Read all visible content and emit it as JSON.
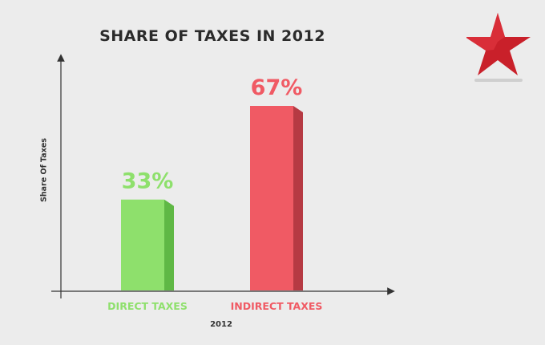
{
  "chart_data": {
    "type": "bar",
    "title": "SHARE OF TAXES IN 2012",
    "xlabel": "2012",
    "ylabel": "Share Of Taxes",
    "categories": [
      "DIRECT TAXES",
      "INDIRECT TAXES"
    ],
    "values": [
      33,
      67
    ],
    "data_labels": [
      "33%",
      "67%"
    ],
    "ylim": [
      0,
      100
    ],
    "grid": false,
    "colors": [
      "#8ee06c",
      "#f05a64"
    ],
    "side_colors": [
      "#5fb845",
      "#b63a43"
    ]
  },
  "colors": {
    "axis": "#333333",
    "title": "#2b2b2b",
    "logo_red": "#c9202a"
  },
  "logo": {
    "name": "star-logo-icon"
  }
}
